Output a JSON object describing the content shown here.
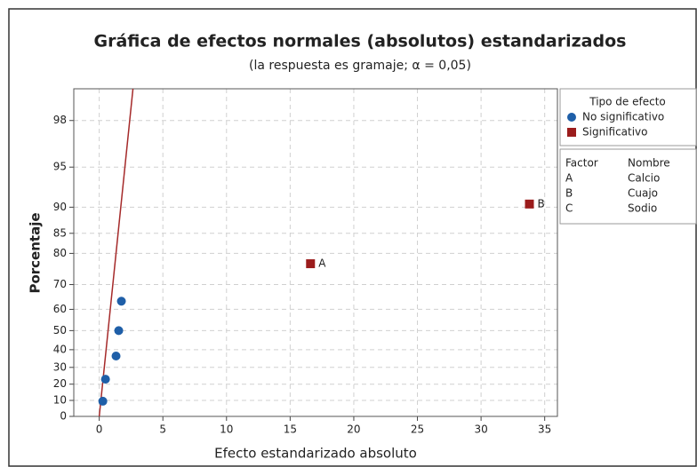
{
  "chart_data": {
    "type": "scatter",
    "title": "Gráfica de efectos normales (absolutos) estandarizados",
    "subtitle": "(la respuesta es gramaje; α = 0,05)",
    "x_label": "Efecto estandarizado absoluto",
    "y_label": "Porcentaje",
    "xlim": [
      -2,
      36
    ],
    "xticks": [
      0,
      5,
      10,
      15,
      20,
      25,
      30,
      35
    ],
    "ylim": [
      0,
      99
    ],
    "yticks": [
      0,
      10,
      20,
      30,
      40,
      50,
      60,
      70,
      80,
      85,
      90,
      95,
      98
    ],
    "y_scale": "half-normal probability",
    "grid": true,
    "legend_title": "Tipo de efecto",
    "series": [
      {
        "name": "No significativo",
        "color": "#1f5fa8",
        "marker": "circle",
        "x": [
          0.28,
          0.49,
          1.32,
          1.53,
          1.74
        ],
        "values": [
          9.5,
          23,
          36.5,
          50,
          63.5
        ]
      },
      {
        "name": "Significativo",
        "color": "#9b1c1c",
        "marker": "square",
        "x": [
          16.6,
          33.8
        ],
        "values": [
          77,
          90.5
        ],
        "labels": [
          "A",
          "B"
        ]
      }
    ],
    "reference_line": {
      "color": "#a52a2a",
      "x": [
        0,
        2.65
      ],
      "values": [
        0,
        99
      ]
    },
    "factor_table": {
      "header": [
        "Factor",
        "Nombre"
      ],
      "rows": [
        [
          "A",
          "Calcio"
        ],
        [
          "B",
          "Cuajo"
        ],
        [
          "C",
          "Sodio"
        ]
      ]
    }
  }
}
